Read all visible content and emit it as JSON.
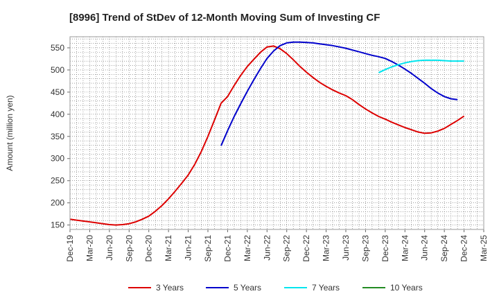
{
  "chart_data": {
    "type": "line",
    "title": "[8996]  Trend of StDev of 12-Month Moving Sum of Investing CF",
    "ylabel": "Amount (million yen)",
    "xlabel": "",
    "ylim": [
      140,
      575
    ],
    "yticks": [
      150,
      200,
      250,
      300,
      350,
      400,
      450,
      500,
      550
    ],
    "x_tick_labels": [
      "Dec-19",
      "Mar-20",
      "Jun-20",
      "Sep-20",
      "Dec-20",
      "Mar-21",
      "Jun-21",
      "Sep-21",
      "Dec-21",
      "Mar-22",
      "Jun-22",
      "Sep-22",
      "Dec-22",
      "Mar-23",
      "Jun-23",
      "Sep-23",
      "Dec-23",
      "Mar-24",
      "Jun-24",
      "Sep-24",
      "Dec-24",
      "Mar-25"
    ],
    "grid": true,
    "legend_position": "bottom",
    "series": [
      {
        "name": "3 Years",
        "color": "#dd0000",
        "points": [
          [
            "Dec-19",
            163
          ],
          [
            "Jan-20",
            161
          ],
          [
            "Feb-20",
            159
          ],
          [
            "Mar-20",
            157
          ],
          [
            "Apr-20",
            155
          ],
          [
            "May-20",
            153
          ],
          [
            "Jun-20",
            151
          ],
          [
            "Jul-20",
            150
          ],
          [
            "Aug-20",
            151
          ],
          [
            "Sep-20",
            153
          ],
          [
            "Oct-20",
            157
          ],
          [
            "Nov-20",
            163
          ],
          [
            "Dec-20",
            170
          ],
          [
            "Jan-21",
            181
          ],
          [
            "Feb-21",
            194
          ],
          [
            "Mar-21",
            209
          ],
          [
            "Apr-21",
            226
          ],
          [
            "May-21",
            244
          ],
          [
            "Jun-21",
            263
          ],
          [
            "Jul-21",
            287
          ],
          [
            "Aug-21",
            316
          ],
          [
            "Sep-21",
            350
          ],
          [
            "Oct-21",
            387
          ],
          [
            "Nov-21",
            425
          ],
          [
            "Dec-21",
            440
          ],
          [
            "Jan-22",
            465
          ],
          [
            "Feb-22",
            488
          ],
          [
            "Mar-22",
            508
          ],
          [
            "Apr-22",
            524
          ],
          [
            "May-22",
            540
          ],
          [
            "Jun-22",
            552
          ],
          [
            "Jul-22",
            554
          ],
          [
            "Aug-22",
            548
          ],
          [
            "Sep-22",
            537
          ],
          [
            "Oct-22",
            523
          ],
          [
            "Nov-22",
            508
          ],
          [
            "Dec-22",
            495
          ],
          [
            "Jan-23",
            483
          ],
          [
            "Feb-23",
            472
          ],
          [
            "Mar-23",
            463
          ],
          [
            "Apr-23",
            455
          ],
          [
            "May-23",
            448
          ],
          [
            "Jun-23",
            442
          ],
          [
            "Jul-23",
            433
          ],
          [
            "Aug-23",
            422
          ],
          [
            "Sep-23",
            412
          ],
          [
            "Oct-23",
            403
          ],
          [
            "Nov-23",
            395
          ],
          [
            "Dec-23",
            389
          ],
          [
            "Jan-24",
            382
          ],
          [
            "Feb-24",
            376
          ],
          [
            "Mar-24",
            370
          ],
          [
            "Apr-24",
            365
          ],
          [
            "May-24",
            360
          ],
          [
            "Jun-24",
            357
          ],
          [
            "Jul-24",
            358
          ],
          [
            "Aug-24",
            362
          ],
          [
            "Sep-24",
            368
          ],
          [
            "Oct-24",
            377
          ],
          [
            "Nov-24",
            386
          ],
          [
            "Dec-24",
            396
          ]
        ]
      },
      {
        "name": "5 Years",
        "color": "#0000cc",
        "points": [
          [
            "Nov-21",
            329
          ],
          [
            "Dec-21",
            363
          ],
          [
            "Jan-22",
            395
          ],
          [
            "Feb-22",
            424
          ],
          [
            "Mar-22",
            452
          ],
          [
            "Apr-22",
            478
          ],
          [
            "May-22",
            503
          ],
          [
            "Jun-22",
            526
          ],
          [
            "Jul-22",
            543
          ],
          [
            "Aug-22",
            555
          ],
          [
            "Sep-22",
            561
          ],
          [
            "Oct-22",
            563
          ],
          [
            "Nov-22",
            563
          ],
          [
            "Dec-22",
            562
          ],
          [
            "Jan-23",
            561
          ],
          [
            "Feb-23",
            559
          ],
          [
            "Mar-23",
            557
          ],
          [
            "Apr-23",
            555
          ],
          [
            "May-23",
            552
          ],
          [
            "Jun-23",
            549
          ],
          [
            "Jul-23",
            545
          ],
          [
            "Aug-23",
            541
          ],
          [
            "Sep-23",
            537
          ],
          [
            "Oct-23",
            533
          ],
          [
            "Nov-23",
            530
          ],
          [
            "Dec-23",
            526
          ],
          [
            "Jan-24",
            519
          ],
          [
            "Feb-24",
            511
          ],
          [
            "Mar-24",
            502
          ],
          [
            "Apr-24",
            492
          ],
          [
            "May-24",
            481
          ],
          [
            "Jun-24",
            470
          ],
          [
            "Jul-24",
            458
          ],
          [
            "Aug-24",
            448
          ],
          [
            "Sep-24",
            440
          ],
          [
            "Oct-24",
            435
          ],
          [
            "Nov-24",
            433
          ]
        ]
      },
      {
        "name": "7 Years",
        "color": "#00e5ee",
        "points": [
          [
            "Nov-23",
            494
          ],
          [
            "Dec-23",
            501
          ],
          [
            "Jan-24",
            507
          ],
          [
            "Feb-24",
            512
          ],
          [
            "Mar-24",
            516
          ],
          [
            "Apr-24",
            519
          ],
          [
            "May-24",
            521
          ],
          [
            "Jun-24",
            522
          ],
          [
            "Jul-24",
            522
          ],
          [
            "Aug-24",
            522
          ],
          [
            "Sep-24",
            521
          ],
          [
            "Oct-24",
            520
          ],
          [
            "Nov-24",
            520
          ],
          [
            "Dec-24",
            520
          ]
        ]
      },
      {
        "name": "10 Years",
        "color": "#228b22",
        "points": []
      }
    ]
  }
}
